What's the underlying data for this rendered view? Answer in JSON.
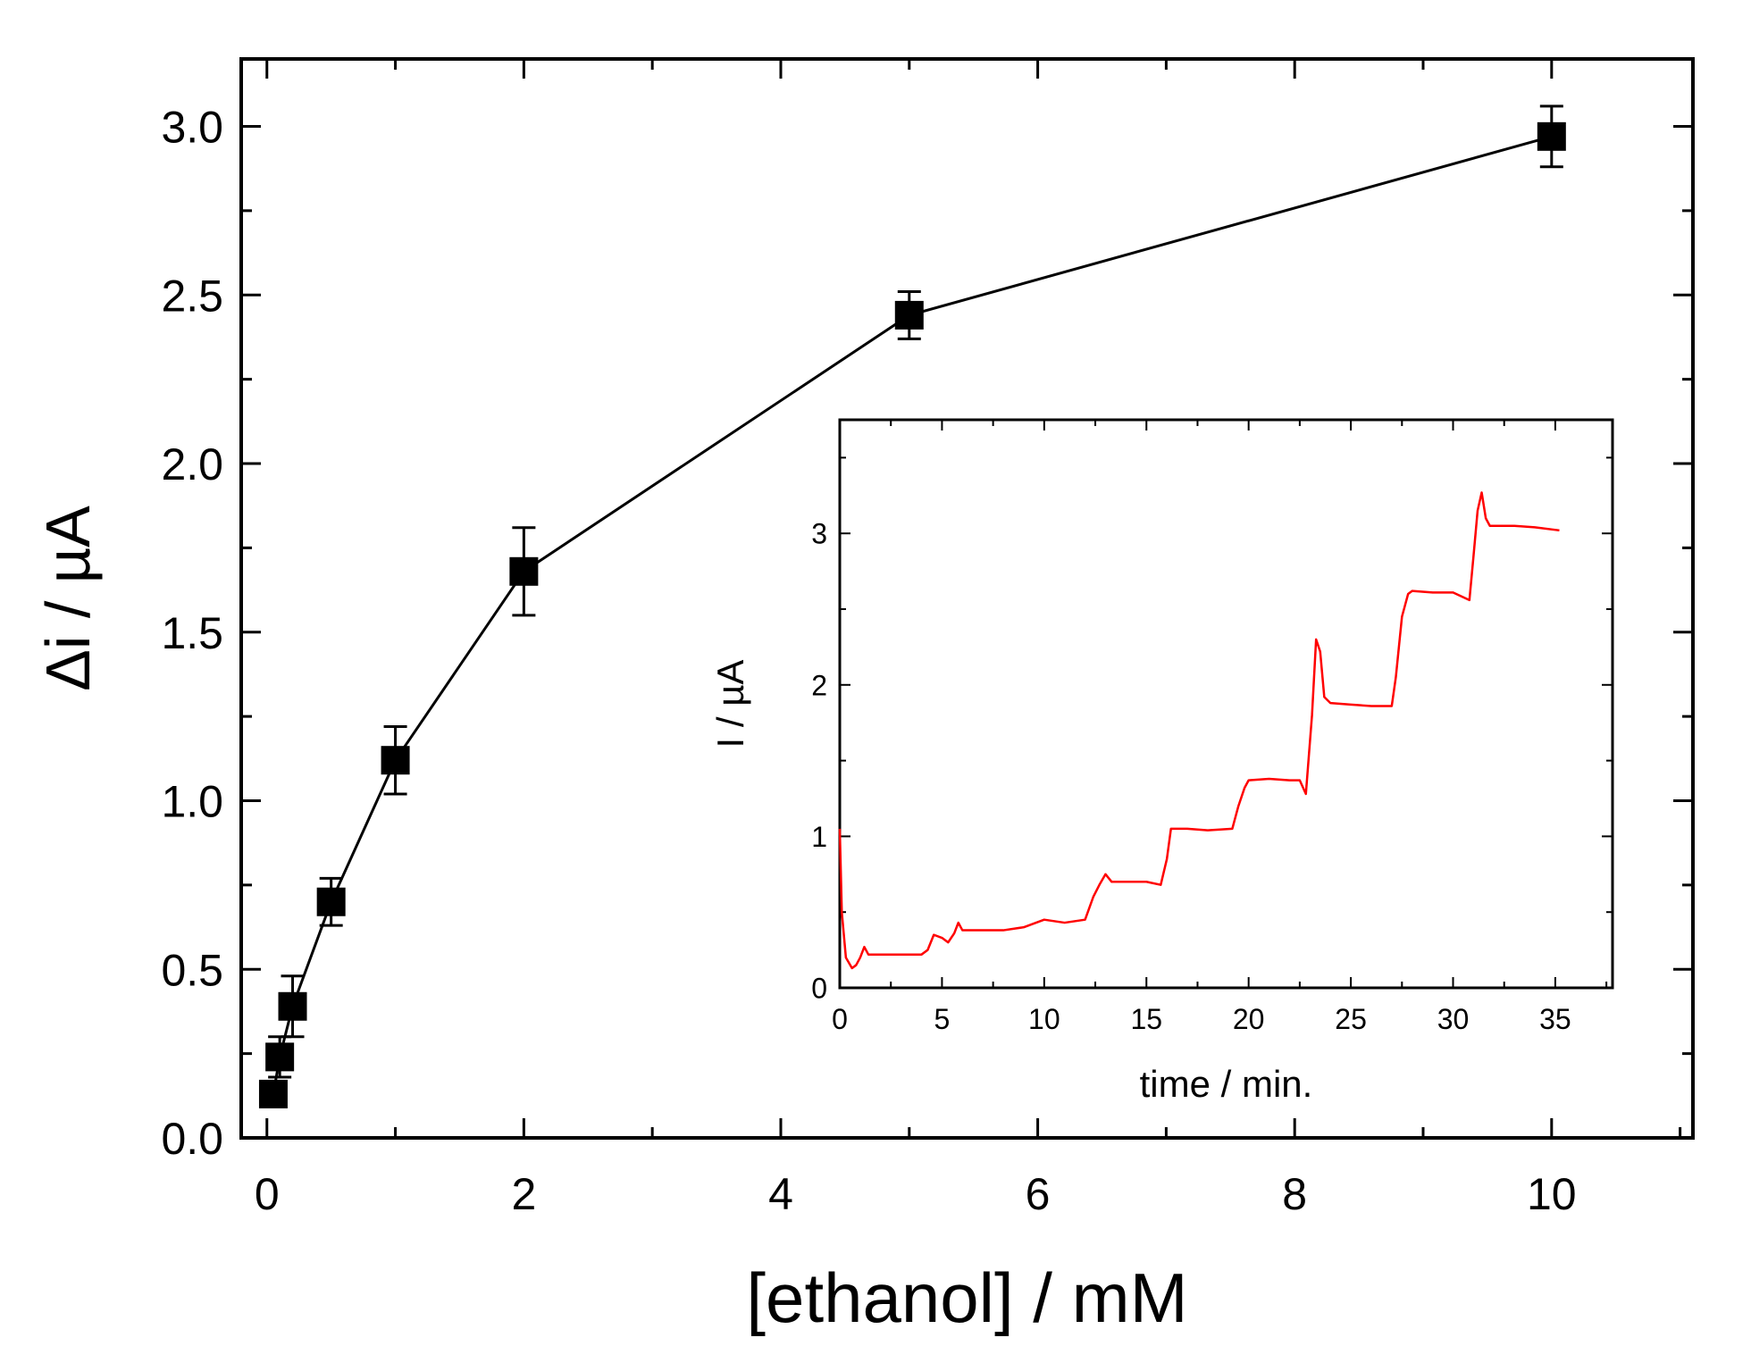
{
  "chart_data": [
    {
      "type": "scatter",
      "xlabel": "[ethanol] / mM",
      "ylabel": "Δi / µA",
      "xlim": [
        -0.2,
        11.1
      ],
      "ylim": [
        0.0,
        3.2
      ],
      "xticks": [
        0,
        2,
        4,
        6,
        8,
        10
      ],
      "yticks": [
        0.0,
        0.5,
        1.0,
        1.5,
        2.0,
        2.5,
        3.0
      ],
      "xtick_labels": [
        "0",
        "2",
        "4",
        "6",
        "8",
        "10"
      ],
      "ytick_labels": [
        "0.0",
        "0.5",
        "1.0",
        "1.5",
        "2.0",
        "2.5",
        "3.0"
      ],
      "grid": false,
      "series": [
        {
          "marker": "square",
          "line": true,
          "color": "#000000",
          "x": [
            0.05,
            0.1,
            0.2,
            0.5,
            1.0,
            2.0,
            5.0,
            10.0
          ],
          "y": [
            0.13,
            0.24,
            0.39,
            0.7,
            1.12,
            1.68,
            2.44,
            2.97
          ],
          "error": [
            0.02,
            0.06,
            0.09,
            0.07,
            0.1,
            0.13,
            0.07,
            0.09
          ]
        }
      ]
    },
    {
      "type": "line",
      "xlabel": "time / min.",
      "ylabel": "I / µA",
      "xlim": [
        0,
        37.8
      ],
      "ylim": [
        0,
        3.75
      ],
      "xticks": [
        0,
        5,
        10,
        15,
        20,
        25,
        30,
        35
      ],
      "yticks": [
        0,
        1,
        2,
        3
      ],
      "xtick_labels": [
        "0",
        "5",
        "10",
        "15",
        "20",
        "25",
        "30",
        "35"
      ],
      "ytick_labels": [
        "0",
        "1",
        "2",
        "3"
      ],
      "grid": false,
      "series": [
        {
          "color": "#ff0000",
          "x": [
            0,
            0.1,
            0.3,
            0.6,
            0.8,
            1.0,
            1.2,
            1.4,
            2,
            3,
            4,
            4.3,
            4.6,
            5.0,
            5.3,
            5.6,
            5.8,
            6.0,
            7,
            8,
            9,
            10,
            11,
            12,
            12.4,
            12.7,
            13.0,
            13.3,
            14,
            15,
            15.7,
            16.0,
            16.2,
            17,
            18,
            19.2,
            19.5,
            19.8,
            20,
            21,
            22,
            22.5,
            22.8,
            23.1,
            23.3,
            23.5,
            23.7,
            24,
            25,
            26,
            27,
            27.2,
            27.5,
            27.8,
            28,
            29,
            30,
            30.8,
            31.0,
            31.2,
            31.4,
            31.6,
            31.8,
            32,
            33,
            34,
            35.2
          ],
          "y": [
            1.05,
            0.5,
            0.2,
            0.13,
            0.15,
            0.2,
            0.27,
            0.22,
            0.22,
            0.22,
            0.22,
            0.25,
            0.35,
            0.33,
            0.3,
            0.36,
            0.43,
            0.38,
            0.38,
            0.38,
            0.4,
            0.45,
            0.43,
            0.45,
            0.6,
            0.68,
            0.75,
            0.7,
            0.7,
            0.7,
            0.68,
            0.85,
            1.05,
            1.05,
            1.04,
            1.05,
            1.2,
            1.32,
            1.37,
            1.38,
            1.37,
            1.37,
            1.28,
            1.8,
            2.3,
            2.22,
            1.92,
            1.88,
            1.87,
            1.86,
            1.86,
            2.05,
            2.45,
            2.6,
            2.62,
            2.61,
            2.61,
            2.56,
            2.85,
            3.15,
            3.27,
            3.1,
            3.05,
            3.05,
            3.05,
            3.04,
            3.02
          ]
        }
      ]
    }
  ]
}
